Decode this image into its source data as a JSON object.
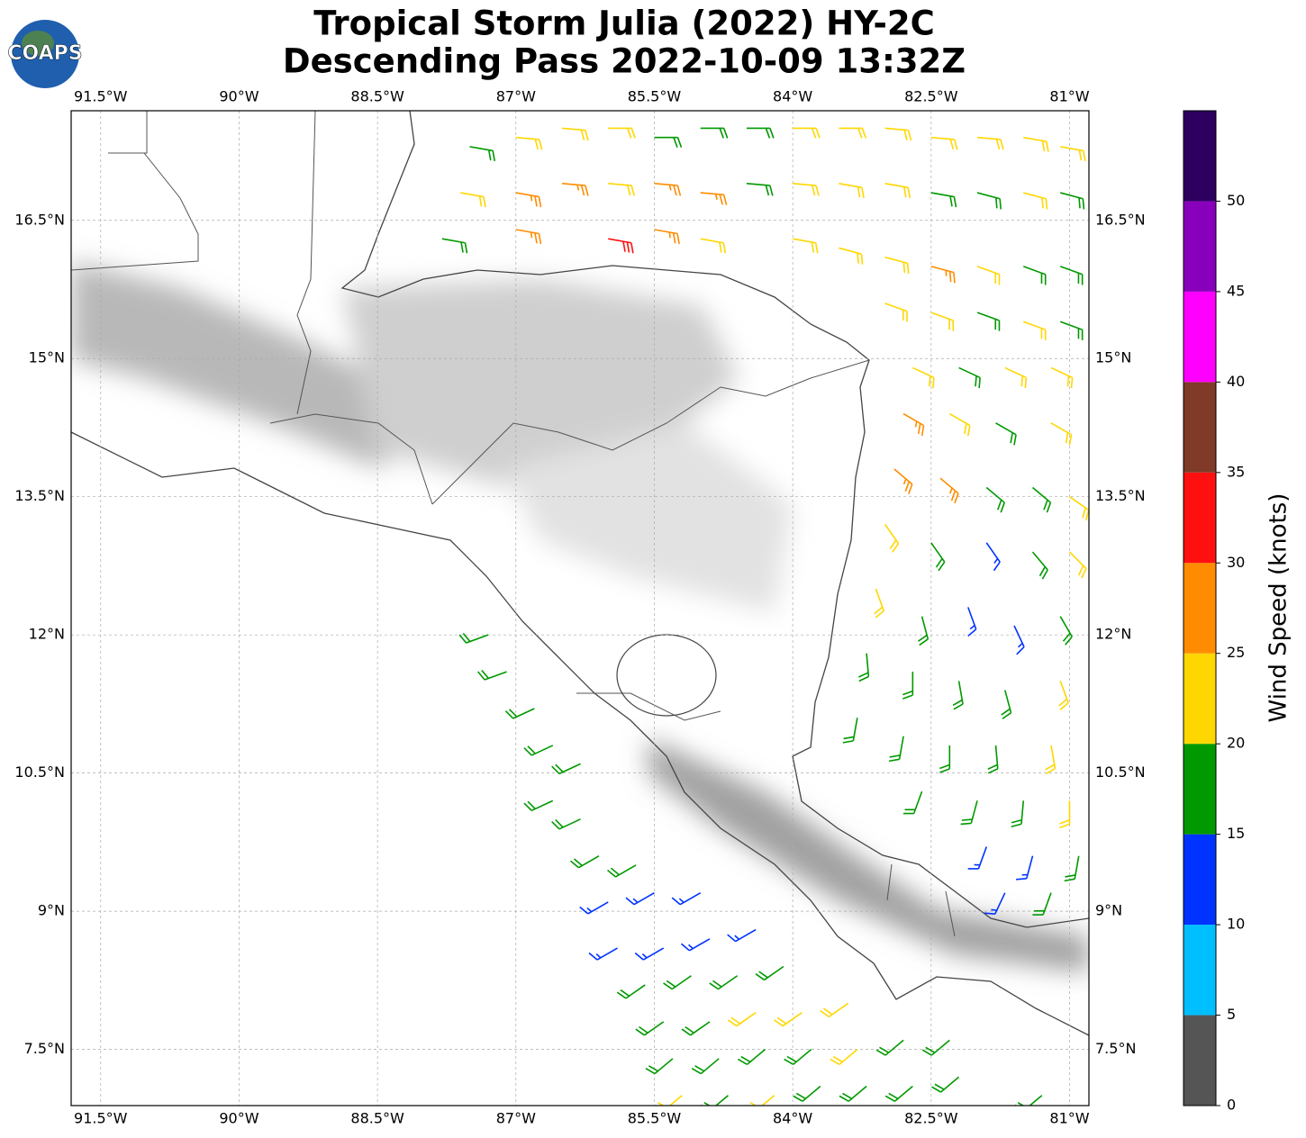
{
  "chart_data": {
    "type": "wind-barb-map",
    "title": "Tropical Storm Julia (2022) HY-2C",
    "subtitle": "Descending Pass 2022-10-09 13:32Z",
    "logo": "COAPS",
    "xlim": [
      -91.82,
      -80.79
    ],
    "ylim": [
      6.89,
      17.69
    ],
    "xticks": [
      {
        "value": -91.5,
        "label": "91.5°W"
      },
      {
        "value": -90,
        "label": "90°W"
      },
      {
        "value": -88.5,
        "label": "88.5°W"
      },
      {
        "value": -87,
        "label": "87°W"
      },
      {
        "value": -85.5,
        "label": "85.5°W"
      },
      {
        "value": -84,
        "label": "84°W"
      },
      {
        "value": -82.5,
        "label": "82.5°W"
      },
      {
        "value": -81,
        "label": "81°W"
      }
    ],
    "yticks": [
      {
        "value": 16.5,
        "label": "16.5°N"
      },
      {
        "value": 15,
        "label": "15°N"
      },
      {
        "value": 13.5,
        "label": "13.5°N"
      },
      {
        "value": 12,
        "label": "12°N"
      },
      {
        "value": 10.5,
        "label": "10.5°N"
      },
      {
        "value": 9,
        "label": "9°N"
      },
      {
        "value": 7.5,
        "label": "7.5°N"
      }
    ],
    "grid": true,
    "colorbar": {
      "label": "Wind Speed (knots)",
      "clim": [
        0,
        55
      ],
      "ticks": [
        0,
        5,
        10,
        15,
        20,
        25,
        30,
        35,
        40,
        45,
        50
      ],
      "colors": [
        "#555555",
        "#00bfff",
        "#0033ff",
        "#009900",
        "#ffd700",
        "#ff8c00",
        "#ff1010",
        "#7f3a28",
        "#ff00ff",
        "#8800bb",
        "#2d005f"
      ]
    },
    "barbs": {
      "lon": [
        -87.5,
        -87.0,
        -86.5,
        -86.0,
        -85.5,
        -85.0,
        -84.5,
        -84.0,
        -83.5,
        -83.0,
        -82.5,
        -82.0,
        -81.5,
        -81.1,
        -87.6,
        -87.0,
        -86.5,
        -86.0,
        -85.5,
        -85.0,
        -84.5,
        -84.0,
        -83.5,
        -83.0,
        -82.5,
        -82.0,
        -81.5,
        -81.1,
        -87.8,
        -87.0,
        -86.0,
        -85.5,
        -85.0,
        -84.0,
        -83.5,
        -83.0,
        -82.5,
        -82.0,
        -81.5,
        -81.1,
        -83.0,
        -82.5,
        -82.0,
        -81.5,
        -81.1,
        -82.7,
        -82.2,
        -81.7,
        -81.2,
        -82.8,
        -82.3,
        -81.8,
        -81.2,
        -82.9,
        -82.4,
        -81.9,
        -81.4,
        -81.0,
        -83.0,
        -82.5,
        -81.9,
        -81.4,
        -81.0,
        -83.1,
        -82.6,
        -82.1,
        -81.6,
        -81.1,
        -83.2,
        -82.7,
        -82.2,
        -81.7,
        -81.1,
        -83.3,
        -82.8,
        -82.3,
        -81.8,
        -81.2,
        -82.6,
        -82.0,
        -81.5,
        -81.0,
        -81.9,
        -81.4,
        -80.9,
        -81.7,
        -81.2,
        -87.3,
        -87.1,
        -86.8,
        -86.6,
        -86.3,
        -86.6,
        -86.3,
        -86.1,
        -85.7,
        -86.0,
        -85.5,
        -85.0,
        -85.9,
        -85.4,
        -84.9,
        -84.4,
        -85.6,
        -85.1,
        -84.6,
        -84.1,
        -85.4,
        -84.9,
        -84.4,
        -83.9,
        -83.4,
        -85.3,
        -84.8,
        -84.3,
        -83.8,
        -83.3,
        -82.8,
        -82.3,
        -85.2,
        -84.7,
        -84.2,
        -83.7,
        -83.2,
        -82.7,
        -82.2,
        -81.3
      ],
      "lat": [
        17.3,
        17.4,
        17.5,
        17.5,
        17.4,
        17.5,
        17.5,
        17.5,
        17.5,
        17.5,
        17.4,
        17.4,
        17.4,
        17.3,
        16.8,
        16.8,
        16.9,
        16.9,
        16.9,
        16.8,
        16.9,
        16.9,
        16.9,
        16.9,
        16.8,
        16.8,
        16.8,
        16.8,
        16.3,
        16.4,
        16.3,
        16.4,
        16.3,
        16.3,
        16.2,
        16.1,
        16.0,
        16.0,
        16.0,
        16.0,
        15.6,
        15.5,
        15.5,
        15.4,
        15.4,
        14.9,
        14.9,
        14.9,
        14.9,
        14.4,
        14.4,
        14.3,
        14.3,
        13.8,
        13.7,
        13.6,
        13.6,
        13.5,
        13.2,
        13.0,
        13.0,
        12.9,
        12.9,
        12.5,
        12.2,
        12.3,
        12.1,
        12.2,
        11.8,
        11.6,
        11.5,
        11.4,
        11.5,
        11.1,
        10.9,
        10.8,
        10.8,
        10.8,
        10.3,
        10.2,
        10.2,
        10.2,
        9.7,
        9.6,
        9.6,
        9.2,
        9.2,
        12.0,
        11.6,
        11.2,
        10.8,
        10.6,
        10.2,
        10.0,
        9.6,
        9.5,
        9.1,
        9.2,
        9.2,
        8.6,
        8.6,
        8.7,
        8.8,
        8.2,
        8.3,
        8.3,
        8.4,
        7.8,
        7.8,
        7.9,
        7.9,
        8.0,
        7.4,
        7.4,
        7.5,
        7.5,
        7.5,
        7.6,
        7.6,
        7.0,
        7.0,
        7.0,
        7.1,
        7.1,
        7.1,
        7.2,
        7.0
      ],
      "speed": [
        18,
        22,
        22,
        22,
        18,
        18,
        18,
        22,
        22,
        22,
        22,
        22,
        22,
        22,
        22,
        27,
        27,
        22,
        27,
        27,
        18,
        22,
        22,
        22,
        18,
        18,
        22,
        18,
        18,
        27,
        32,
        27,
        22,
        22,
        22,
        22,
        27,
        22,
        18,
        18,
        22,
        22,
        18,
        22,
        18,
        22,
        18,
        22,
        22,
        27,
        22,
        18,
        22,
        27,
        27,
        18,
        18,
        22,
        22,
        18,
        13,
        18,
        22,
        22,
        18,
        13,
        13,
        18,
        18,
        18,
        18,
        18,
        22,
        18,
        18,
        18,
        18,
        22,
        18,
        18,
        18,
        22,
        13,
        13,
        18,
        13,
        18,
        18,
        18,
        18,
        18,
        18,
        18,
        18,
        18,
        18,
        13,
        13,
        13,
        13,
        13,
        13,
        13,
        18,
        18,
        18,
        18,
        18,
        18,
        22,
        22,
        22,
        18,
        18,
        18,
        18,
        22,
        18,
        18,
        22,
        18,
        22,
        18,
        18,
        18,
        18,
        18
      ],
      "dir": [
        100,
        95,
        95,
        90,
        90,
        90,
        90,
        90,
        90,
        95,
        95,
        95,
        100,
        100,
        100,
        100,
        95,
        95,
        95,
        95,
        95,
        95,
        100,
        100,
        100,
        105,
        105,
        105,
        100,
        100,
        100,
        100,
        100,
        100,
        105,
        105,
        105,
        110,
        110,
        110,
        110,
        110,
        110,
        110,
        110,
        115,
        115,
        115,
        115,
        120,
        120,
        120,
        120,
        130,
        130,
        130,
        130,
        125,
        145,
        145,
        145,
        140,
        135,
        160,
        165,
        160,
        155,
        150,
        175,
        180,
        170,
        165,
        160,
        190,
        190,
        180,
        175,
        170,
        200,
        195,
        185,
        180,
        200,
        195,
        190,
        205,
        200,
        250,
        250,
        245,
        245,
        245,
        245,
        245,
        240,
        240,
        240,
        240,
        240,
        240,
        240,
        240,
        240,
        235,
        235,
        235,
        235,
        235,
        235,
        235,
        235,
        235,
        230,
        230,
        230,
        230,
        230,
        230,
        230,
        230,
        230,
        230,
        230,
        230,
        230,
        230,
        230
      ]
    }
  }
}
